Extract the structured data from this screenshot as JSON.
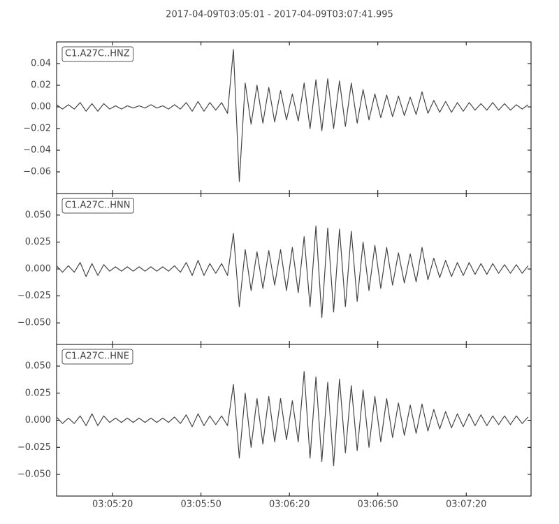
{
  "chart_data": {
    "type": "line",
    "title": "2017-04-09T03:05:01  -  2017-04-09T03:07:41.995",
    "xlim": [
      "03:05:01",
      "03:07:41.995"
    ],
    "xticks": [
      "03:05:20",
      "03:05:50",
      "03:06:20",
      "03:06:50",
      "03:07:20"
    ],
    "x": [
      "03:05:01",
      "03:05:03",
      "03:05:05",
      "03:05:07",
      "03:05:09",
      "03:05:11",
      "03:05:13",
      "03:05:15",
      "03:05:17",
      "03:05:19",
      "03:05:21",
      "03:05:23",
      "03:05:25",
      "03:05:27",
      "03:05:29",
      "03:05:31",
      "03:05:33",
      "03:05:35",
      "03:05:37",
      "03:05:39",
      "03:05:41",
      "03:05:43",
      "03:05:45",
      "03:05:47",
      "03:05:49",
      "03:05:51",
      "03:05:53",
      "03:05:55",
      "03:05:57",
      "03:05:59",
      "03:06:01",
      "03:06:03",
      "03:06:05",
      "03:06:07",
      "03:06:09",
      "03:06:11",
      "03:06:13",
      "03:06:15",
      "03:06:17",
      "03:06:19",
      "03:06:21",
      "03:06:23",
      "03:06:25",
      "03:06:27",
      "03:06:29",
      "03:06:31",
      "03:06:33",
      "03:06:35",
      "03:06:37",
      "03:06:39",
      "03:06:41",
      "03:06:43",
      "03:06:45",
      "03:06:47",
      "03:06:49",
      "03:06:51",
      "03:06:53",
      "03:06:55",
      "03:06:57",
      "03:06:59",
      "03:07:01",
      "03:07:03",
      "03:07:05",
      "03:07:07",
      "03:07:09",
      "03:07:11",
      "03:07:13",
      "03:07:15",
      "03:07:17",
      "03:07:19",
      "03:07:21",
      "03:07:23",
      "03:07:25",
      "03:07:27",
      "03:07:29",
      "03:07:31",
      "03:07:33",
      "03:07:35",
      "03:07:37",
      "03:07:39",
      "03:07:41"
    ],
    "series": [
      {
        "name": "C1.A27C..HNZ",
        "color": "#454545",
        "ylim": [
          -0.08,
          0.06
        ],
        "yticks": [
          0.04,
          0.02,
          {
            "value": 0,
            "label": "0.00"
          },
          {
            "value": -0.02,
            "label": "−0.02"
          },
          {
            "value": -0.04,
            "label": "−0.04"
          },
          {
            "value": -0.06,
            "label": "−0.06"
          }
        ],
        "values": [
          0.002,
          -0.002,
          0.002,
          -0.002,
          0.004,
          -0.004,
          0.003,
          -0.004,
          0.003,
          -0.002,
          0.001,
          -0.002,
          0.001,
          -0.001,
          0.001,
          -0.001,
          0.002,
          -0.001,
          0.001,
          -0.002,
          0.002,
          -0.002,
          0.004,
          -0.004,
          0.005,
          -0.004,
          0.004,
          -0.003,
          0.004,
          -0.006,
          0.053,
          -0.069,
          0.022,
          -0.016,
          0.02,
          -0.015,
          0.018,
          -0.014,
          0.015,
          -0.012,
          0.012,
          -0.013,
          0.022,
          -0.02,
          0.025,
          -0.022,
          0.026,
          -0.02,
          0.024,
          -0.018,
          0.022,
          -0.015,
          0.016,
          -0.012,
          0.012,
          -0.01,
          0.011,
          -0.009,
          0.01,
          -0.008,
          0.009,
          -0.007,
          0.014,
          -0.006,
          0.006,
          -0.005,
          0.005,
          -0.005,
          0.004,
          -0.004,
          0.004,
          -0.003,
          0.003,
          -0.003,
          0.004,
          -0.003,
          0.003,
          -0.003,
          0.002,
          -0.002,
          0.002
        ]
      },
      {
        "name": "C1.A27C..HNN",
        "color": "#454545",
        "ylim": [
          -0.07,
          0.07
        ],
        "yticks": [
          {
            "value": 0.05,
            "label": "0.050"
          },
          0.025,
          {
            "value": 0,
            "label": "0.000"
          },
          {
            "value": -0.025,
            "label": "−0.025"
          },
          {
            "value": -0.05,
            "label": "−0.050"
          }
        ],
        "values": [
          0.003,
          -0.003,
          0.003,
          -0.003,
          0.006,
          -0.007,
          0.005,
          -0.006,
          0.004,
          -0.002,
          0.002,
          -0.002,
          0.002,
          -0.002,
          0.002,
          -0.002,
          0.002,
          -0.002,
          0.002,
          -0.002,
          0.003,
          -0.003,
          0.006,
          -0.006,
          0.008,
          -0.006,
          0.005,
          -0.004,
          0.005,
          -0.006,
          0.033,
          -0.035,
          0.018,
          -0.02,
          0.016,
          -0.018,
          0.017,
          -0.015,
          0.018,
          -0.02,
          0.02,
          -0.022,
          0.03,
          -0.035,
          0.04,
          -0.045,
          0.038,
          -0.04,
          0.037,
          -0.035,
          0.035,
          -0.03,
          0.025,
          -0.02,
          0.022,
          -0.018,
          0.02,
          -0.015,
          0.015,
          -0.013,
          0.014,
          -0.012,
          0.02,
          -0.01,
          0.01,
          -0.008,
          0.008,
          -0.007,
          0.006,
          -0.006,
          0.006,
          -0.005,
          0.005,
          -0.005,
          0.005,
          -0.004,
          0.004,
          -0.004,
          0.004,
          -0.004,
          0.003
        ]
      },
      {
        "name": "C1.A27C..HNE",
        "color": "#454545",
        "ylim": [
          -0.07,
          0.07
        ],
        "yticks": [
          {
            "value": 0.05,
            "label": "0.050"
          },
          0.025,
          {
            "value": 0,
            "label": "0.000"
          },
          {
            "value": -0.025,
            "label": "−0.025"
          },
          {
            "value": -0.05,
            "label": "−0.050"
          }
        ],
        "values": [
          0.003,
          -0.003,
          0.002,
          -0.003,
          0.004,
          -0.005,
          0.006,
          -0.005,
          0.004,
          -0.002,
          0.002,
          -0.002,
          0.002,
          -0.002,
          0.002,
          -0.002,
          0.002,
          -0.002,
          0.002,
          -0.002,
          0.003,
          -0.003,
          0.005,
          -0.006,
          0.006,
          -0.005,
          0.004,
          -0.004,
          0.004,
          -0.005,
          0.033,
          -0.035,
          0.025,
          -0.025,
          0.02,
          -0.022,
          0.022,
          -0.02,
          0.02,
          -0.018,
          0.018,
          -0.02,
          0.045,
          -0.035,
          0.04,
          -0.038,
          0.035,
          -0.042,
          0.038,
          -0.03,
          0.032,
          -0.028,
          0.028,
          -0.025,
          0.022,
          -0.02,
          0.02,
          -0.016,
          0.016,
          -0.014,
          0.014,
          -0.012,
          0.015,
          -0.01,
          0.01,
          -0.008,
          0.008,
          -0.007,
          0.006,
          -0.006,
          0.006,
          -0.005,
          0.005,
          -0.005,
          0.004,
          -0.004,
          0.004,
          -0.004,
          0.004,
          -0.003,
          0.003
        ]
      }
    ]
  }
}
